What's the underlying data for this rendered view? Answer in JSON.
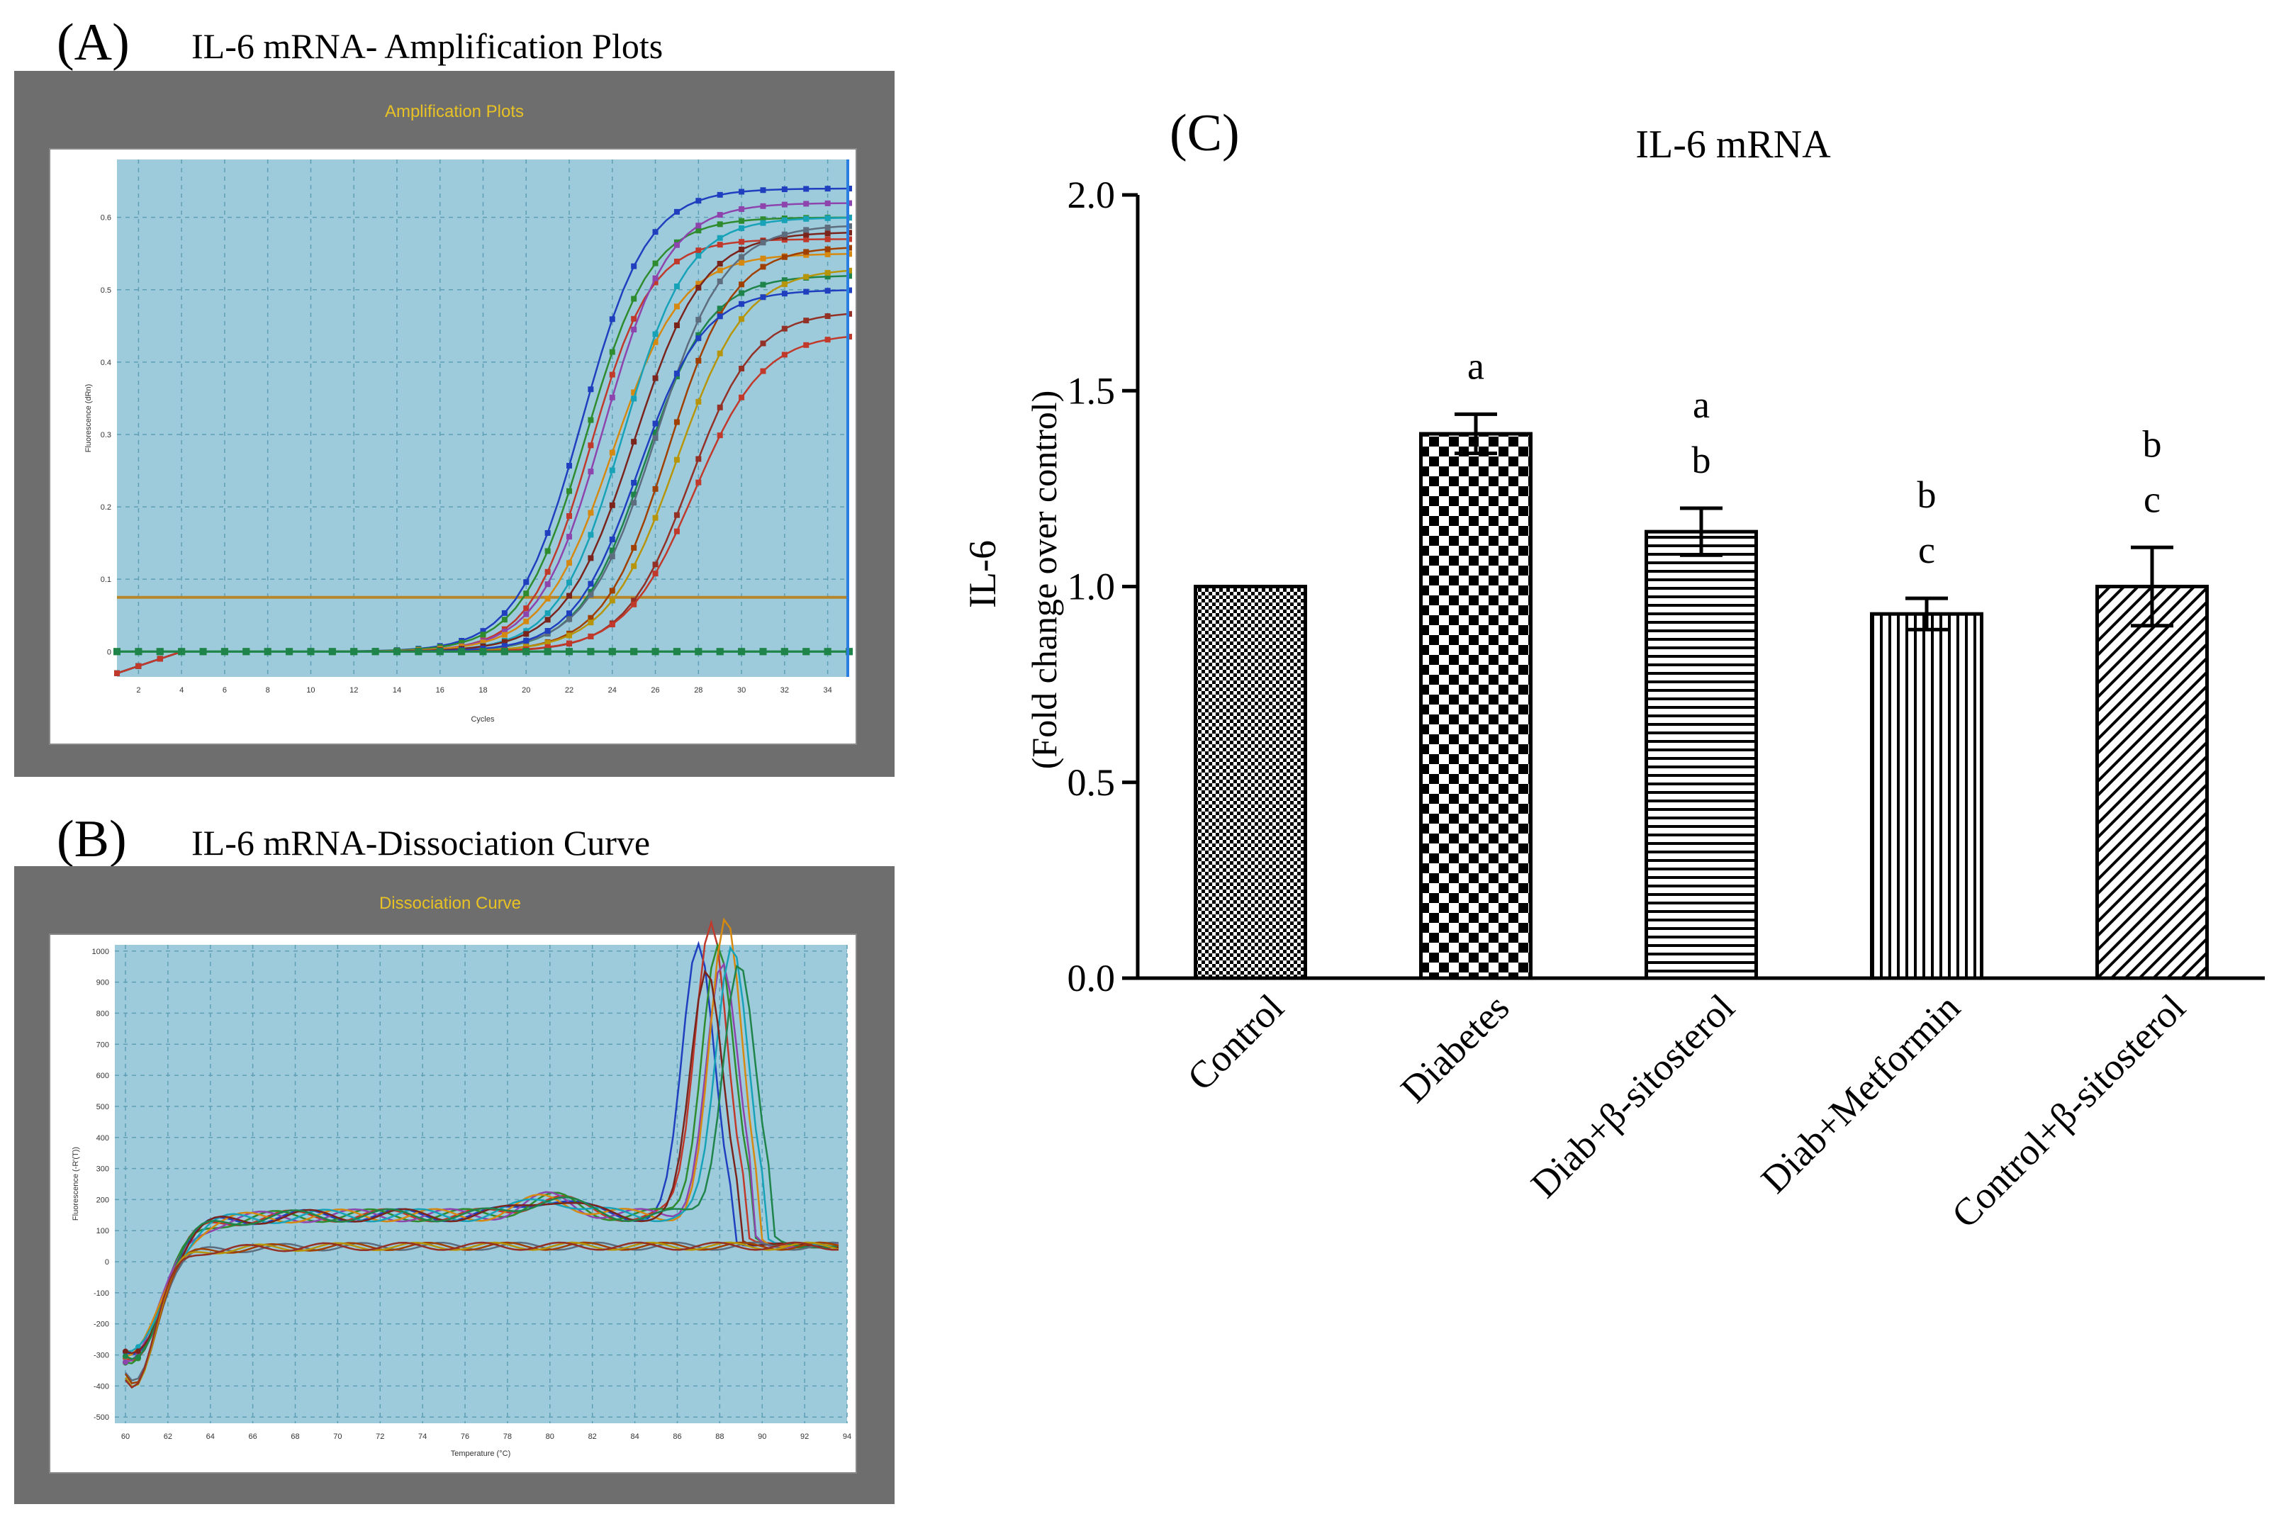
{
  "panel_a": {
    "label": "(A)",
    "title": "IL-6 mRNA- Amplification Plots",
    "window_title": "Amplification Plots",
    "ylabel": "Fluorescence (dRn)",
    "xlabel": "Cycles",
    "x_ticks": [
      "2",
      "4",
      "6",
      "8",
      "10",
      "12",
      "14",
      "16",
      "18",
      "20",
      "22",
      "24",
      "26",
      "28",
      "30",
      "32",
      "34"
    ],
    "y_ticks": [
      "0",
      "0.1",
      "0.2",
      "0.3",
      "0.4",
      "0.5",
      "0.6"
    ],
    "threshold": 0.075
  },
  "panel_b": {
    "label": "(B)",
    "title": "IL-6 mRNA-Dissociation Curve",
    "window_title": "Dissociation Curve",
    "ylabel": "Fluorescence (-R'(T))",
    "xlabel": "Temperature (°C)",
    "x_ticks": [
      "60",
      "62",
      "64",
      "66",
      "68",
      "70",
      "72",
      "74",
      "76",
      "78",
      "80",
      "82",
      "84",
      "86",
      "88",
      "90",
      "92",
      "94"
    ],
    "y_ticks": [
      "-500",
      "-400",
      "-300",
      "-200",
      "-100",
      "0",
      "100",
      "200",
      "300",
      "400",
      "500",
      "600",
      "700",
      "800",
      "900",
      "1000"
    ]
  },
  "series_colors": [
    "#1f3fbf",
    "#c0392b",
    "#2e8b2e",
    "#8e44ad",
    "#d68910",
    "#17a2b8",
    "#7b241c",
    "#1e8449",
    "#5d6d7e",
    "#a04000",
    "#b7950b",
    "#943126"
  ],
  "chart_data": {
    "type": "bar",
    "panel_label": "(C)",
    "title": "IL-6 mRNA",
    "ylabel_line1": "IL-6",
    "ylabel_line2": "(Fold change over control)",
    "xlabel": "",
    "ylim": [
      0,
      2.0
    ],
    "y_ticks": [
      "0.0",
      "0.5",
      "1.0",
      "1.5",
      "2.0"
    ],
    "categories": [
      "Control",
      "Diabetes",
      "Diab+β-sitosterol",
      "Diab+Metformin",
      "Control+β-sitosterol"
    ],
    "values": [
      1.0,
      1.39,
      1.14,
      0.93,
      1.0
    ],
    "errors": [
      0.0,
      0.05,
      0.06,
      0.04,
      0.1
    ],
    "significance": [
      [],
      [
        "a"
      ],
      [
        "a",
        "b"
      ],
      [
        "b",
        "c"
      ],
      [
        "b",
        "c"
      ]
    ],
    "patterns": [
      "fine-check",
      "checker",
      "horizontal-lines",
      "vertical-lines",
      "diagonal-lines"
    ]
  }
}
